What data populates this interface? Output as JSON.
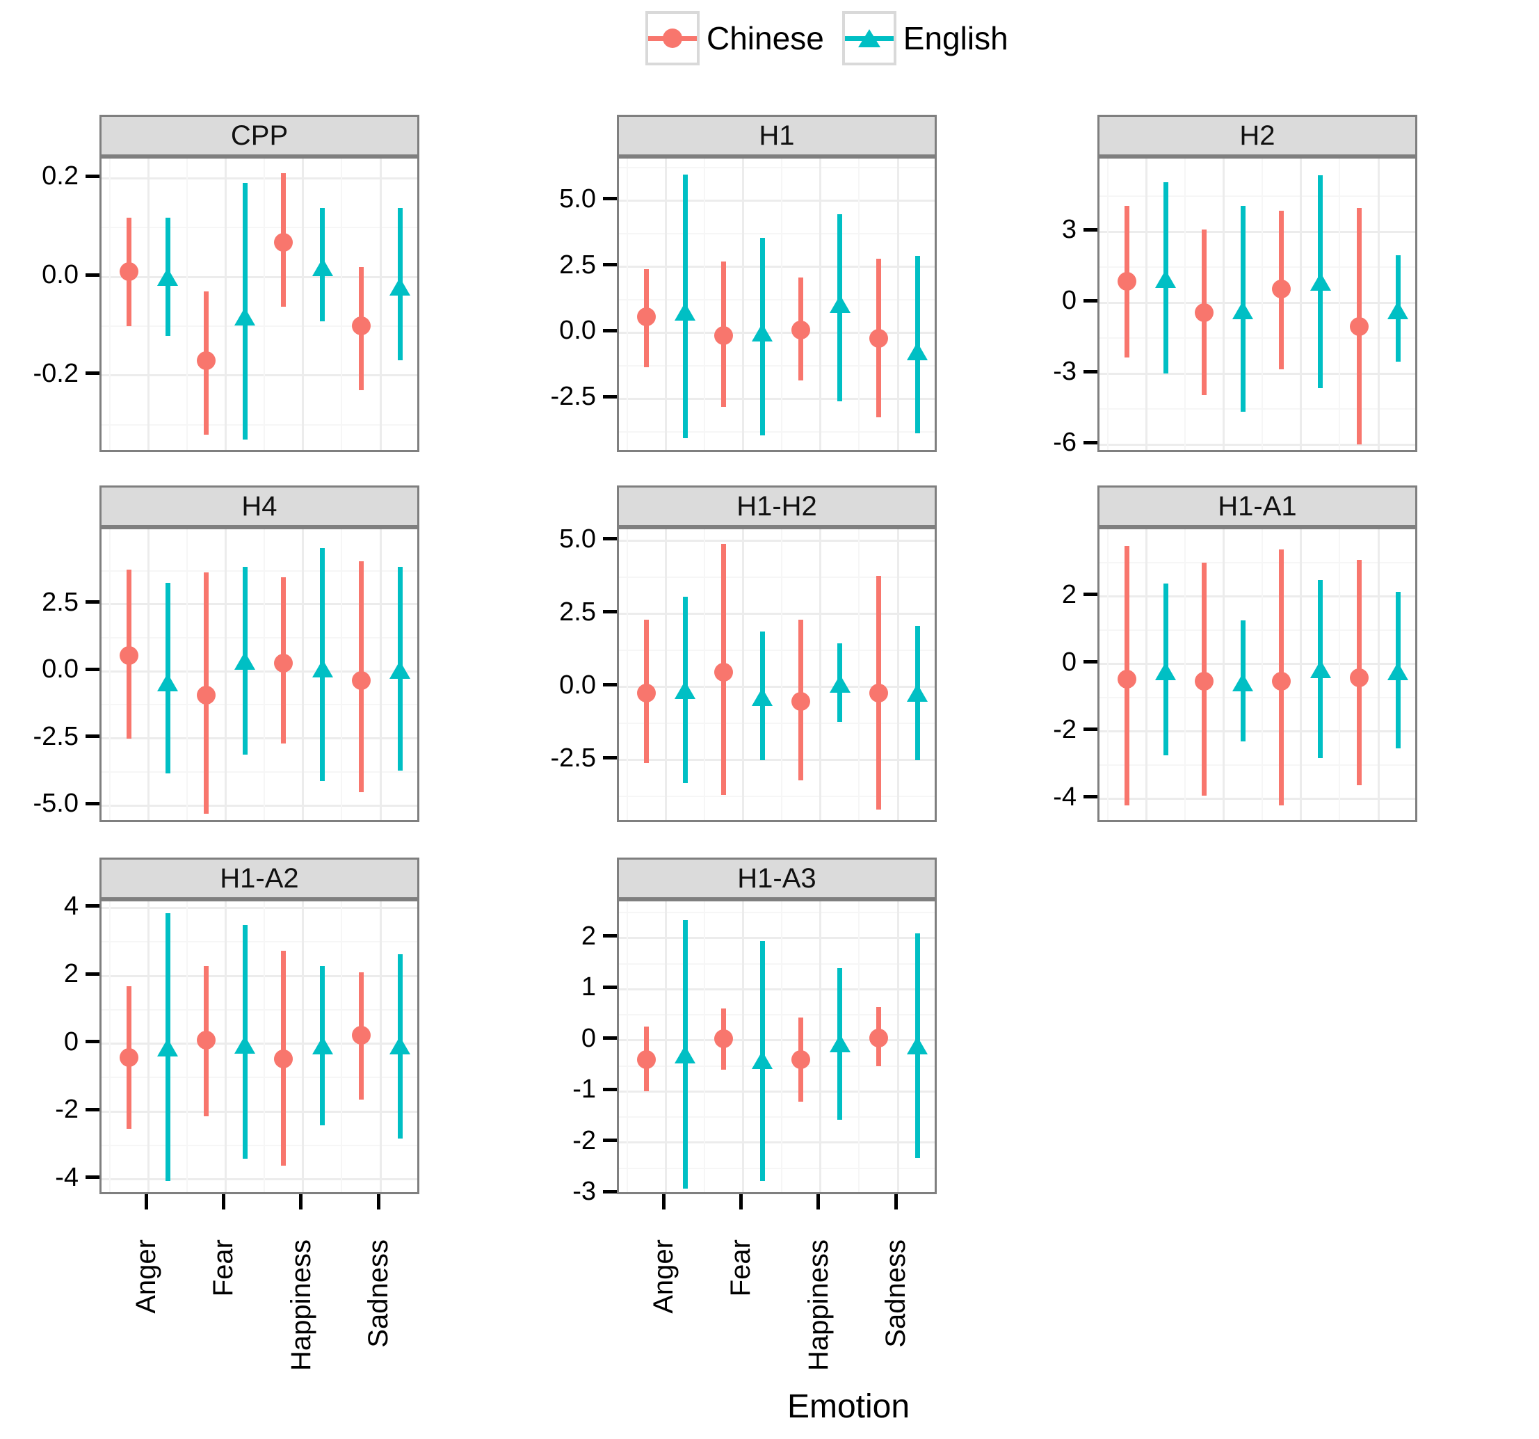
{
  "legend": {
    "items": [
      {
        "label": "Chinese",
        "color": "#F8766D",
        "marker": "circle"
      },
      {
        "label": "English",
        "color": "#00BFC4",
        "marker": "triangle"
      }
    ]
  },
  "axis": {
    "x_title": "Emotion",
    "categories": [
      "Anger",
      "Fear",
      "Happiness",
      "Sadness"
    ]
  },
  "chart_data": {
    "type": "pointrange",
    "legend_position": "top",
    "grid": true,
    "x_categories": [
      "Anger",
      "Fear",
      "Happiness",
      "Sadness"
    ],
    "facets": [
      {
        "title": "CPP",
        "ylim": [
          -0.36,
          0.24
        ],
        "ticks": [
          0.2,
          0.0,
          -0.2
        ],
        "tick_labels": [
          "0.2",
          "0.0",
          "-0.2"
        ],
        "series": [
          {
            "name": "Chinese",
            "values": [
              {
                "center": 0.01,
                "lower": -0.1,
                "upper": 0.12
              },
              {
                "center": -0.17,
                "lower": -0.32,
                "upper": -0.03
              },
              {
                "center": 0.07,
                "lower": -0.06,
                "upper": 0.21
              },
              {
                "center": -0.1,
                "lower": -0.23,
                "upper": 0.02
              }
            ]
          },
          {
            "name": "English",
            "values": [
              {
                "center": 0.0,
                "lower": -0.12,
                "upper": 0.12
              },
              {
                "center": -0.08,
                "lower": -0.33,
                "upper": 0.19
              },
              {
                "center": 0.02,
                "lower": -0.09,
                "upper": 0.14
              },
              {
                "center": -0.02,
                "lower": -0.17,
                "upper": 0.14
              }
            ]
          }
        ]
      },
      {
        "title": "H1",
        "ylim": [
          -4.6,
          6.6
        ],
        "ticks": [
          5.0,
          2.5,
          0.0,
          -2.5
        ],
        "tick_labels": [
          "5.0",
          "2.5",
          "0.0",
          "-2.5"
        ],
        "series": [
          {
            "name": "Chinese",
            "values": [
              {
                "center": 0.6,
                "lower": -1.3,
                "upper": 2.4
              },
              {
                "center": -0.1,
                "lower": -2.8,
                "upper": 2.7
              },
              {
                "center": 0.1,
                "lower": -1.8,
                "upper": 2.1
              },
              {
                "center": -0.2,
                "lower": -3.2,
                "upper": 2.8
              }
            ]
          },
          {
            "name": "English",
            "values": [
              {
                "center": 0.8,
                "lower": -4.0,
                "upper": 6.0
              },
              {
                "center": 0.0,
                "lower": -3.9,
                "upper": 3.6
              },
              {
                "center": 1.1,
                "lower": -2.6,
                "upper": 4.5
              },
              {
                "center": -0.7,
                "lower": -3.8,
                "upper": 2.9
              }
            ]
          }
        ]
      },
      {
        "title": "H2",
        "ylim": [
          -6.4,
          6.1
        ],
        "ticks": [
          3,
          0,
          -3,
          -6
        ],
        "tick_labels": [
          "3",
          "0",
          "-3",
          "-6"
        ],
        "series": [
          {
            "name": "Chinese",
            "values": [
              {
                "center": 0.9,
                "lower": -2.3,
                "upper": 4.1
              },
              {
                "center": -0.4,
                "lower": -3.9,
                "upper": 3.1
              },
              {
                "center": 0.6,
                "lower": -2.8,
                "upper": 3.9
              },
              {
                "center": -1.0,
                "lower": -6.0,
                "upper": 4.0
              }
            ]
          },
          {
            "name": "English",
            "values": [
              {
                "center": 1.0,
                "lower": -3.0,
                "upper": 5.1
              },
              {
                "center": -0.3,
                "lower": -4.6,
                "upper": 4.1
              },
              {
                "center": 0.9,
                "lower": -3.6,
                "upper": 5.4
              },
              {
                "center": -0.3,
                "lower": -2.5,
                "upper": 2.0
              }
            ]
          }
        ]
      },
      {
        "title": "H4",
        "ylim": [
          -5.7,
          5.3
        ],
        "ticks": [
          2.5,
          0.0,
          -2.5,
          -5.0
        ],
        "tick_labels": [
          "2.5",
          "0.0",
          "-2.5",
          "-5.0"
        ],
        "series": [
          {
            "name": "Chinese",
            "values": [
              {
                "center": 0.6,
                "lower": -2.5,
                "upper": 3.8
              },
              {
                "center": -0.9,
                "lower": -5.3,
                "upper": 3.7
              },
              {
                "center": 0.3,
                "lower": -2.7,
                "upper": 3.5
              },
              {
                "center": -0.35,
                "lower": -4.5,
                "upper": 4.1
              }
            ]
          },
          {
            "name": "English",
            "values": [
              {
                "center": -0.4,
                "lower": -3.8,
                "upper": 3.3
              },
              {
                "center": 0.4,
                "lower": -3.1,
                "upper": 3.9
              },
              {
                "center": 0.1,
                "lower": -4.1,
                "upper": 4.6
              },
              {
                "center": 0.05,
                "lower": -3.7,
                "upper": 3.9
              }
            ]
          }
        ]
      },
      {
        "title": "H1-H2",
        "ylim": [
          -4.7,
          5.4
        ],
        "ticks": [
          5.0,
          2.5,
          0.0,
          -2.5
        ],
        "tick_labels": [
          "5.0",
          "2.5",
          "0.0",
          "-2.5"
        ],
        "series": [
          {
            "name": "Chinese",
            "values": [
              {
                "center": -0.2,
                "lower": -2.6,
                "upper": 2.3
              },
              {
                "center": 0.5,
                "lower": -3.7,
                "upper": 4.9
              },
              {
                "center": -0.5,
                "lower": -3.2,
                "upper": 2.3
              },
              {
                "center": -0.2,
                "lower": -4.2,
                "upper": 3.8
              }
            ]
          },
          {
            "name": "English",
            "values": [
              {
                "center": -0.1,
                "lower": -3.3,
                "upper": 3.1
              },
              {
                "center": -0.35,
                "lower": -2.5,
                "upper": 1.9
              },
              {
                "center": 0.1,
                "lower": -1.2,
                "upper": 1.5
              },
              {
                "center": -0.2,
                "lower": -2.5,
                "upper": 2.1
              }
            ]
          }
        ]
      },
      {
        "title": "H1-A1",
        "ylim": [
          -4.75,
          4.0
        ],
        "ticks": [
          2,
          0,
          -2,
          -4
        ],
        "tick_labels": [
          "2",
          "0",
          "-2",
          "-4"
        ],
        "series": [
          {
            "name": "Chinese",
            "values": [
              {
                "center": -0.45,
                "lower": -4.2,
                "upper": 3.5
              },
              {
                "center": -0.5,
                "lower": -3.9,
                "upper": 3.0
              },
              {
                "center": -0.5,
                "lower": -4.2,
                "upper": 3.4
              },
              {
                "center": -0.4,
                "lower": -3.6,
                "upper": 3.1
              }
            ]
          },
          {
            "name": "English",
            "values": [
              {
                "center": -0.2,
                "lower": -2.7,
                "upper": 2.4
              },
              {
                "center": -0.55,
                "lower": -2.3,
                "upper": 1.3
              },
              {
                "center": -0.15,
                "lower": -2.8,
                "upper": 2.5
              },
              {
                "center": -0.2,
                "lower": -2.5,
                "upper": 2.15
              }
            ]
          }
        ]
      },
      {
        "title": "H1-A2",
        "ylim": [
          -4.5,
          4.2
        ],
        "ticks": [
          4,
          2,
          0,
          -2,
          -4
        ],
        "tick_labels": [
          "4",
          "2",
          "0",
          "-2",
          "-4"
        ],
        "series": [
          {
            "name": "Chinese",
            "values": [
              {
                "center": -0.4,
                "lower": -2.5,
                "upper": 1.7
              },
              {
                "center": 0.1,
                "lower": -2.15,
                "upper": 2.3
              },
              {
                "center": -0.45,
                "lower": -3.6,
                "upper": 2.75
              },
              {
                "center": 0.25,
                "lower": -1.65,
                "upper": 2.1
              }
            ]
          },
          {
            "name": "English",
            "values": [
              {
                "center": -0.1,
                "lower": -4.05,
                "upper": 3.85
              },
              {
                "center": -0.03,
                "lower": -3.4,
                "upper": 3.5
              },
              {
                "center": -0.05,
                "lower": -2.4,
                "upper": 2.3
              },
              {
                "center": -0.05,
                "lower": -2.8,
                "upper": 2.65
              }
            ]
          }
        ]
      },
      {
        "title": "H1-A3",
        "ylim": [
          -3.05,
          2.72
        ],
        "ticks": [
          2,
          1,
          0,
          -1,
          -2,
          -3
        ],
        "tick_labels": [
          "2",
          "1",
          "0",
          "-1",
          "-2",
          "-3"
        ],
        "series": [
          {
            "name": "Chinese",
            "values": [
              {
                "center": -0.38,
                "lower": -1.0,
                "upper": 0.27
              },
              {
                "center": 0.03,
                "lower": -0.58,
                "upper": 0.63
              },
              {
                "center": -0.38,
                "lower": -1.2,
                "upper": 0.45
              },
              {
                "center": 0.05,
                "lower": -0.5,
                "upper": 0.65
              }
            ]
          },
          {
            "name": "English",
            "values": [
              {
                "center": -0.28,
                "lower": -2.9,
                "upper": 2.35
              },
              {
                "center": -0.38,
                "lower": -2.75,
                "upper": 1.95
              },
              {
                "center": -0.05,
                "lower": -1.55,
                "upper": 1.42
              },
              {
                "center": -0.1,
                "lower": -2.3,
                "upper": 2.1
              }
            ]
          }
        ]
      }
    ]
  }
}
